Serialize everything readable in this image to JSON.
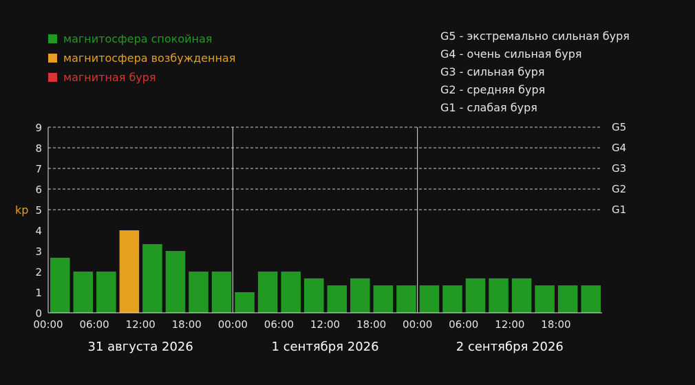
{
  "legend": {
    "quiet": {
      "label": "магнитосфера спокойная",
      "color": "#229922"
    },
    "excited": {
      "label": "магнитосфера возбужденная",
      "color": "#e5a020"
    },
    "storm": {
      "label": "магнитная буря",
      "color": "#dd3333"
    }
  },
  "storm_levels": [
    {
      "code": "G5",
      "text": "G5 - экстремально сильная буря"
    },
    {
      "code": "G4",
      "text": "G4 - очень сильная буря"
    },
    {
      "code": "G3",
      "text": "G3 - сильная буря"
    },
    {
      "code": "G2",
      "text": "G2 - средняя буря"
    },
    {
      "code": "G1",
      "text": "G1 - слабая буря"
    }
  ],
  "chart_data": {
    "type": "bar",
    "ylabel": "kp",
    "ylim": [
      0,
      9
    ],
    "yticks": [
      0,
      1,
      2,
      3,
      4,
      5,
      6,
      7,
      8,
      9
    ],
    "grid": "dashed horizontal at 5-9",
    "right_axis_labels": [
      {
        "value": 9,
        "label": "G5"
      },
      {
        "value": 8,
        "label": "G4"
      },
      {
        "value": 7,
        "label": "G3"
      },
      {
        "value": 6,
        "label": "G2"
      },
      {
        "value": 5,
        "label": "G1"
      }
    ],
    "days": [
      {
        "label": "31 августа 2026",
        "times": [
          "00:00",
          "06:00",
          "12:00",
          "18:00"
        ]
      },
      {
        "label": "1 сентября 2026",
        "times": [
          "00:00",
          "06:00",
          "12:00",
          "18:00"
        ]
      },
      {
        "label": "2 сентября 2026",
        "times": [
          "00:00",
          "06:00",
          "12:00",
          "18:00"
        ]
      }
    ],
    "interval_hours": 3,
    "values": [
      2.67,
      2,
      2,
      4,
      3.33,
      3,
      2,
      2,
      1,
      2,
      2,
      1.67,
      1.33,
      1.67,
      1.33,
      1.33,
      1.33,
      1.33,
      1.67,
      1.67,
      1.67,
      1.33,
      1.33,
      1.33
    ],
    "bar_status": [
      "quiet",
      "quiet",
      "quiet",
      "excited",
      "quiet",
      "quiet",
      "quiet",
      "quiet",
      "quiet",
      "quiet",
      "quiet",
      "quiet",
      "quiet",
      "quiet",
      "quiet",
      "quiet",
      "quiet",
      "quiet",
      "quiet",
      "quiet",
      "quiet",
      "quiet",
      "quiet",
      "quiet"
    ],
    "colors": {
      "quiet": "#229922",
      "excited": "#e5a020",
      "storm": "#dd3333",
      "ylabel": "#e5a020"
    }
  }
}
